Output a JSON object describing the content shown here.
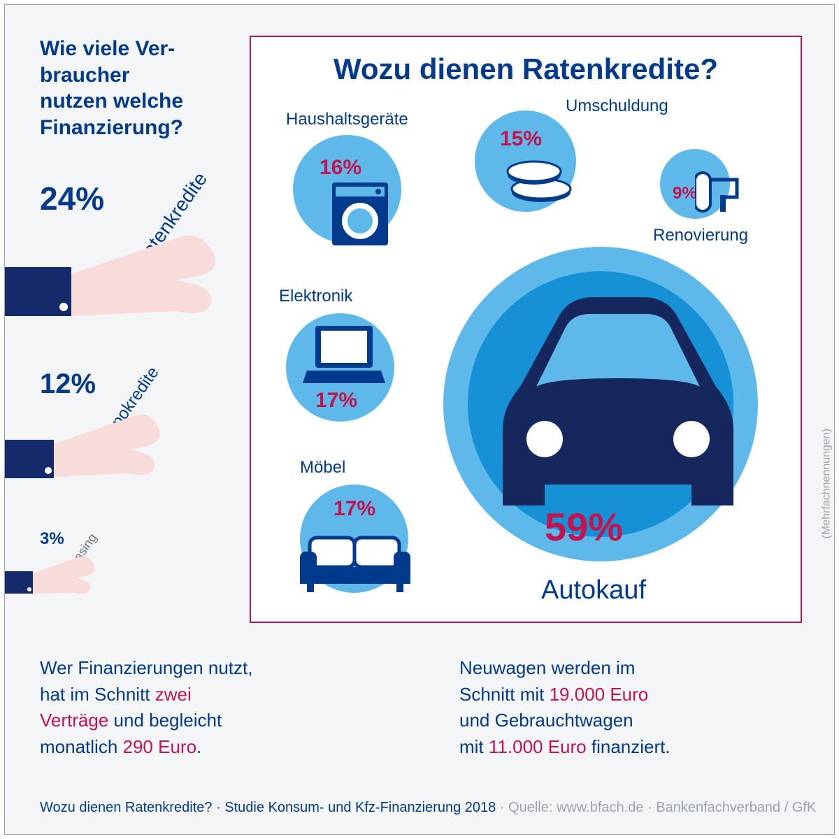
{
  "colors": {
    "navy": "#003a8c",
    "darknavy": "#16275e",
    "magenta": "#c4134e",
    "lightblue": "#5fb8ea",
    "midblue": "#1791d5",
    "skin": "#f7dcd9",
    "cuff": "#142a6b",
    "gray": "#9ca3af",
    "bg": "#f4f5f6"
  },
  "left": {
    "title": "Wie viele Ver-\nbraucher\nnutzen welche\nFinanzierung?",
    "items": [
      {
        "pct": "24%",
        "label": "Ratenkredite"
      },
      {
        "pct": "12%",
        "label": "Dispokredite"
      },
      {
        "pct": "3%",
        "label": "Leasing"
      }
    ]
  },
  "main": {
    "title": "Wozu dienen Ratenkredite?",
    "side_note": "(Mehrfachnennungen)",
    "bubbles": {
      "haushalt": {
        "label": "Haushaltsgeräte",
        "pct": "16%",
        "diameter": 155
      },
      "umschuldung": {
        "label": "Umschuldung",
        "pct": "15%",
        "diameter": 145
      },
      "renovierung": {
        "label": "Renovierung",
        "pct": "9%",
        "diameter": 100
      },
      "elektronik": {
        "label": "Elektronik",
        "pct": "17%",
        "diameter": 155
      },
      "moebel": {
        "label": "Möbel",
        "pct": "17%",
        "diameter": 155
      },
      "auto": {
        "label": "Autokauf",
        "pct": "59%",
        "diameter": 450
      }
    }
  },
  "bottom": {
    "left_parts": [
      "Wer Finanzierungen nutzt,\nhat im Schnitt ",
      "zwei\nVerträge",
      " und begleicht\nmonatlich ",
      "290 Euro",
      "."
    ],
    "right_parts": [
      "Neuwagen werden im\nSchnitt mit ",
      "19.000 Euro",
      "\nund Gebrauchtwagen\nmit ",
      "11.000 Euro",
      " finanziert."
    ]
  },
  "footer": {
    "dark": "Wozu dienen Ratenkredite? · Studie Konsum- und Kfz-Finanzierung 2018",
    "gray": " · Quelle: www.bfach.de · Bankenfachverband / GfK"
  }
}
